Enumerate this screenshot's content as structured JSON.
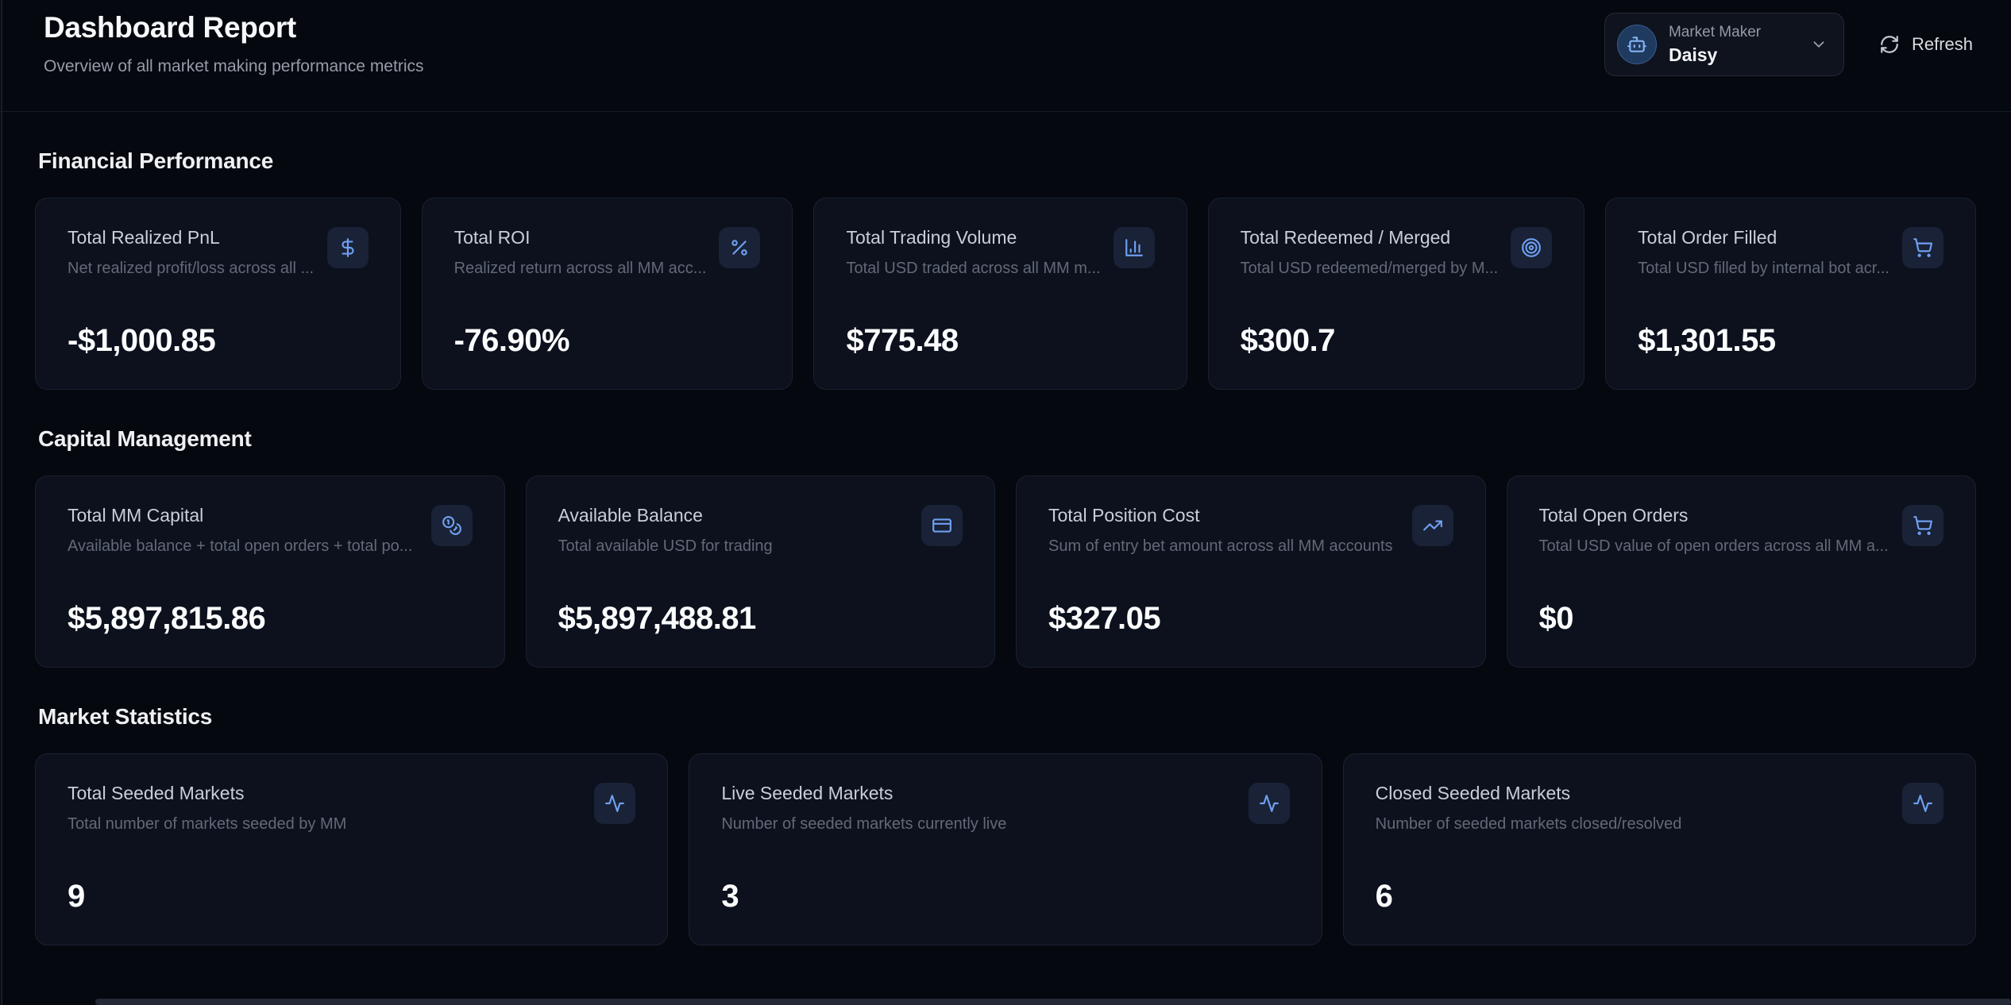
{
  "header": {
    "title": "Dashboard Report",
    "subtitle": "Overview of all market making performance metrics",
    "market_maker": {
      "label": "Market Maker",
      "value": "Daisy"
    },
    "refresh_label": "Refresh"
  },
  "colors": {
    "accent_blue": "#6f9ff0",
    "card_background": "#0c111d",
    "page_background": "#05080f",
    "icon_chip_background": "#192236"
  },
  "sections": [
    {
      "title": "Financial Performance",
      "cards": [
        {
          "icon": "dollar-sign-icon",
          "title": "Total Realized PnL",
          "subtitle": "Net realized profit/loss across all ...",
          "value": "-$1,000.85"
        },
        {
          "icon": "percent-icon",
          "title": "Total ROI",
          "subtitle": "Realized return across all MM acc...",
          "value": "-76.90%"
        },
        {
          "icon": "bar-chart-icon",
          "title": "Total Trading Volume",
          "subtitle": "Total USD traded across all MM m...",
          "value": "$775.48"
        },
        {
          "icon": "target-icon",
          "title": "Total Redeemed / Merged",
          "subtitle": "Total USD redeemed/merged by M...",
          "value": "$300.7"
        },
        {
          "icon": "shopping-cart-icon",
          "title": "Total Order Filled",
          "subtitle": "Total USD filled by internal bot acr...",
          "value": "$1,301.55"
        }
      ]
    },
    {
      "title": "Capital Management",
      "cards": [
        {
          "icon": "coins-icon",
          "title": "Total MM Capital",
          "subtitle": "Available balance + total open orders + total po...",
          "value": "$5,897,815.86"
        },
        {
          "icon": "credit-card-icon",
          "title": "Available Balance",
          "subtitle": "Total available USD for trading",
          "value": "$5,897,488.81"
        },
        {
          "icon": "trending-up-icon",
          "title": "Total Position Cost",
          "subtitle": "Sum of entry bet amount across all MM accounts",
          "value": "$327.05"
        },
        {
          "icon": "shopping-cart-icon",
          "title": "Total Open Orders",
          "subtitle": "Total USD value of open orders across all MM a...",
          "value": "$0"
        }
      ]
    },
    {
      "title": "Market Statistics",
      "cards": [
        {
          "icon": "activity-icon",
          "title": "Total Seeded Markets",
          "subtitle": "Total number of markets seeded by MM",
          "value": "9"
        },
        {
          "icon": "activity-icon",
          "title": "Live Seeded Markets",
          "subtitle": "Number of seeded markets currently live",
          "value": "3"
        },
        {
          "icon": "activity-icon",
          "title": "Closed Seeded Markets",
          "subtitle": "Number of seeded markets closed/resolved",
          "value": "6"
        }
      ]
    }
  ]
}
